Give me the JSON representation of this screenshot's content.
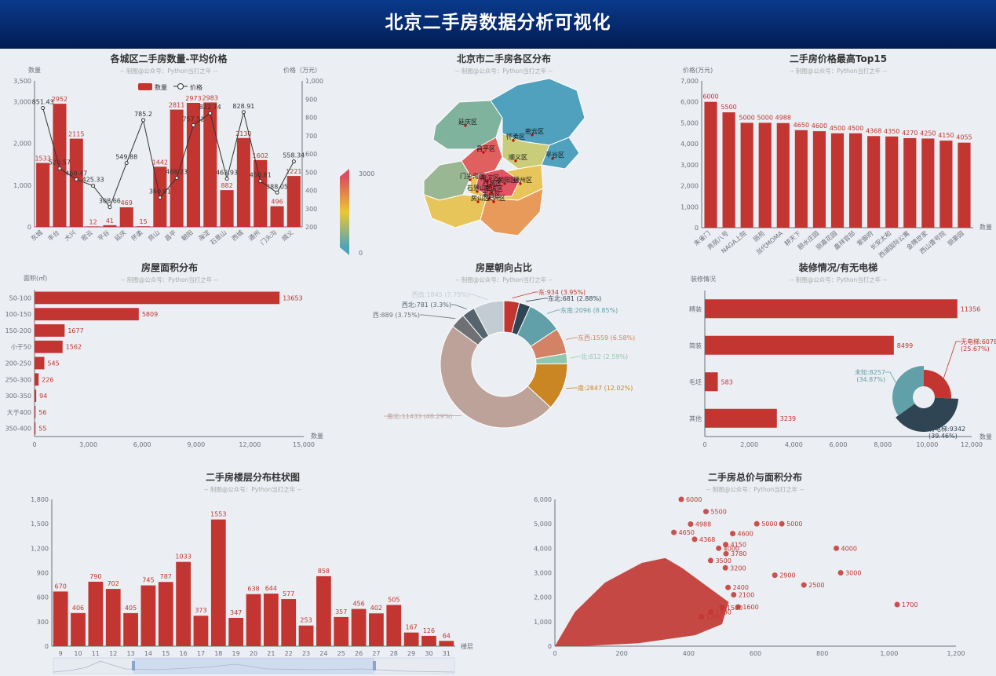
{
  "page": {
    "title": "北京二手房数据分析可视化"
  },
  "credit": "-- 制图@公众号：Python当打之年 --",
  "colors": {
    "bar": "#c23531",
    "scatter": "#c23531",
    "text": "#333333",
    "axis": "#6e7079"
  },
  "chart_data": [
    {
      "id": "district",
      "type": "bar",
      "title": "各城区二手房数量-平均价格",
      "ylabel": "数量",
      "y2label": "价格（万元）",
      "ylim": [
        0,
        3500
      ],
      "y2lim": [
        200,
        1000
      ],
      "yticks": [
        "0",
        "1,000",
        "2,000",
        "3,000",
        "3,500"
      ],
      "y2ticks": [
        "200",
        "300",
        "400",
        "500",
        "600",
        "700",
        "800",
        "900",
        "1,000"
      ],
      "categories": [
        "东城",
        "丰台",
        "大兴",
        "密云",
        "平谷",
        "延庆",
        "怀柔",
        "房山",
        "昌平",
        "朝阳",
        "海淀",
        "石景山",
        "西城",
        "通州",
        "门头沟",
        "顺义"
      ],
      "legend": [
        "数量",
        "价格"
      ],
      "series": [
        {
          "name": "数量",
          "type": "bar",
          "values": [
            1533,
            2952,
            2115,
            12,
            41,
            469,
            15,
            1442,
            2811,
            2973,
            2983,
            882,
            2130,
            1602,
            496,
            1221
          ]
        },
        {
          "name": "价格",
          "type": "line",
          "values": [
            851.43,
            520.57,
            460.47,
            425.33,
            308.66,
            549.88,
            785.2,
            360.91,
            468.23,
            757.52,
            822.74,
            463.93,
            828.91,
            450.81,
            388.05,
            558.34
          ]
        }
      ]
    },
    {
      "id": "map",
      "type": "map",
      "title": "北京市二手房各区分布",
      "visualmap": {
        "max": "3000",
        "min": "0"
      },
      "labels": [
        "延庆区",
        "怀柔区",
        "密云区",
        "昌平区",
        "顺义区",
        "平谷区",
        "门头沟区",
        "海淀区",
        "朝阳区",
        "石景山区",
        "西城区",
        "东城区",
        "丰台区",
        "通州区",
        "房山区",
        "大兴区"
      ]
    },
    {
      "id": "top15",
      "type": "bar",
      "title": "二手房价格最高Top15",
      "ylabel": "价格(万元)",
      "xlabel": "数量",
      "ylim": [
        0,
        7000
      ],
      "yticks": [
        "0",
        "1,000",
        "2,000",
        "3,000",
        "4,000",
        "5,000",
        "6,000",
        "7,000"
      ],
      "categories": [
        "朱雀门",
        "亮丽八号",
        "NAGA上院",
        "丽苑",
        "当代MOMA",
        "耕天下",
        "颐水庄园",
        "丽嘉花园",
        "嘉祥官邸",
        "紫御府",
        "长安太和",
        "西湖国际公寓",
        "金隅世家",
        "西山壹号院",
        "丽豪园"
      ],
      "values": [
        6000,
        5500,
        5000,
        5000,
        4988,
        4650,
        4600,
        4500,
        4500,
        4368,
        4350,
        4270,
        4250,
        4150,
        4055
      ]
    },
    {
      "id": "area",
      "type": "bar",
      "orientation": "horizontal",
      "title": "房屋面积分布",
      "ylabel": "面积(㎡)",
      "xlabel": "数量",
      "xlim": [
        0,
        15000
      ],
      "xticks": [
        "0",
        "3,000",
        "6,000",
        "9,000",
        "12,000",
        "15,000"
      ],
      "categories": [
        "50-100",
        "100-150",
        "150-200",
        "小于50",
        "200-250",
        "250-300",
        "300-350",
        "大于400",
        "350-400"
      ],
      "values": [
        13653,
        5809,
        1677,
        1562,
        545,
        226,
        94,
        56,
        55
      ]
    },
    {
      "id": "orientation",
      "type": "pie",
      "title": "房屋朝向占比",
      "slices": [
        {
          "name": "东",
          "value": 934,
          "label": "东:934 (3.95%)",
          "color": "#c23531"
        },
        {
          "name": "东北",
          "value": 681,
          "label": "东北:681 (2.88%)",
          "color": "#2f4554"
        },
        {
          "name": "东南",
          "value": 2096,
          "label": "东南:2096 (8.85%)",
          "color": "#61a0a8"
        },
        {
          "name": "东西",
          "value": 1559,
          "label": "东西:1559 (6.58%)",
          "color": "#d48265"
        },
        {
          "name": "北",
          "value": 612,
          "label": "北:612 (2.59%)",
          "color": "#91c7ae"
        },
        {
          "name": "南",
          "value": 2847,
          "label": "南:2847 (12.02%)",
          "color": "#ca8622"
        },
        {
          "name": "南北",
          "value": 11433,
          "label": "南北:11433 (48.29%)",
          "color": "#bda29a"
        },
        {
          "name": "西",
          "value": 889,
          "label": "西:889 (3.75%)",
          "color": "#6e7074"
        },
        {
          "name": "西北",
          "value": 781,
          "label": "西北:781 (3.3%)",
          "color": "#546570"
        },
        {
          "name": "西南",
          "value": 1845,
          "label": "西南:1845 (7.79%)",
          "color": "#c4ccd3"
        }
      ]
    },
    {
      "id": "decoration",
      "type": "bar",
      "orientation": "horizontal",
      "title": "装修情况/有无电梯",
      "ylabel": "装修情况",
      "xlabel": "数量",
      "xlim": [
        0,
        12000
      ],
      "xticks": [
        "0",
        "2,000",
        "4,000",
        "6,000",
        "8,000",
        "10,000",
        "12,000"
      ],
      "categories": [
        "精装",
        "简装",
        "毛坯",
        "其他"
      ],
      "values": [
        11356,
        8499,
        583,
        3239
      ]
    },
    {
      "id": "elevator",
      "type": "pie",
      "slices": [
        {
          "name": "无电梯",
          "value": 6078,
          "label1": "无电梯:6078",
          "label2": "(25.67%)",
          "color": "#c23531"
        },
        {
          "name": "有电梯",
          "value": 9342,
          "label1": "有电梯:9342",
          "label2": "(39.46%)",
          "color": "#2f4554"
        },
        {
          "name": "未知",
          "value": 8257,
          "label1": "未知:8257",
          "label2": "(34.87%)",
          "color": "#61a0a8"
        }
      ]
    },
    {
      "id": "floors",
      "type": "bar",
      "title": "二手房楼层分布柱状图",
      "xlabel": "楼层",
      "ylim": [
        0,
        1800
      ],
      "yticks": [
        "0",
        "300",
        "600",
        "900",
        "1,200",
        "1,500",
        "1,800"
      ],
      "categories": [
        "9",
        "10",
        "11",
        "12",
        "13",
        "14",
        "15",
        "16",
        "17",
        "18",
        "19",
        "20",
        "21",
        "22",
        "23",
        "24",
        "25",
        "26",
        "27",
        "28",
        "29",
        "30",
        "31"
      ],
      "values": [
        670,
        406,
        790,
        702,
        405,
        745,
        787,
        1033,
        373,
        1553,
        347,
        638,
        644,
        577,
        253,
        858,
        357,
        456,
        402,
        505,
        167,
        126,
        64
      ]
    },
    {
      "id": "scatter",
      "type": "scatter",
      "title": "二手房总价与面积分布",
      "xlim": [
        0,
        1200
      ],
      "ylim": [
        0,
        6000
      ],
      "xticks": [
        "0",
        "200",
        "400",
        "600",
        "800",
        "1,000",
        "1,200"
      ],
      "yticks": [
        "0",
        "1,000",
        "2,000",
        "3,000",
        "4,000",
        "5,000",
        "6,000"
      ],
      "points": [
        [
          378,
          6000
        ],
        [
          452,
          5500
        ],
        [
          406,
          4988
        ],
        [
          604,
          5000
        ],
        [
          679,
          5000
        ],
        [
          356,
          4650
        ],
        [
          418,
          4368
        ],
        [
          532,
          4600
        ],
        [
          511,
          4150
        ],
        [
          490,
          4000
        ],
        [
          842,
          4000
        ],
        [
          512,
          3780
        ],
        [
          466,
          3500
        ],
        [
          510,
          3200
        ],
        [
          658,
          2900
        ],
        [
          855,
          3000
        ],
        [
          745,
          2500
        ],
        [
          518,
          2400
        ],
        [
          1024,
          1700
        ],
        [
          535,
          2100
        ],
        [
          500,
          1580
        ],
        [
          548,
          1600
        ],
        [
          466,
          1400
        ],
        [
          438,
          1200
        ]
      ],
      "labels": [
        "6000",
        "5500",
        "4988",
        "5000",
        "5000",
        "4650",
        "4368",
        "4600",
        "4150",
        "4000",
        "4000",
        "3780",
        "3500",
        "3200",
        "2900",
        "3000",
        "2500",
        "2400",
        "1700",
        "2100",
        "1580",
        "1600",
        "1400",
        "1200"
      ]
    }
  ]
}
